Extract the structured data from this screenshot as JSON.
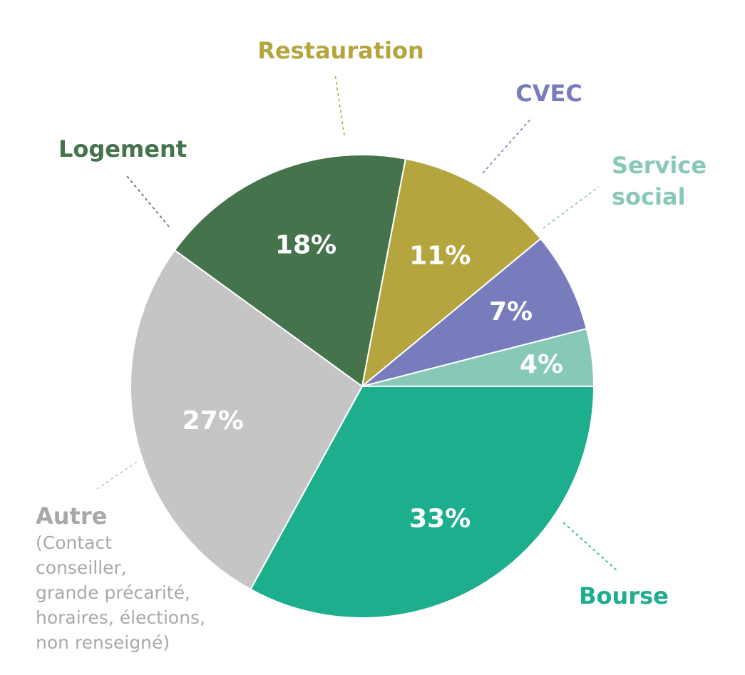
{
  "chart_data": {
    "type": "pie",
    "title": "",
    "unit": "%",
    "slices": [
      {
        "category": "Bourse",
        "value": 33,
        "label": "33%",
        "color": "#1dae8e"
      },
      {
        "category": "Autre",
        "value": 27,
        "label": "27%",
        "color": "#c5c5c5",
        "note_lines": [
          "(Contact",
          "conseiller,",
          "grande précarité,",
          "horaires, élections,",
          "non renseigné)"
        ]
      },
      {
        "category": "Logement",
        "value": 18,
        "label": "18%",
        "color": "#44734c"
      },
      {
        "category": "Restauration",
        "value": 11,
        "label": "11%",
        "color": "#b4a53e"
      },
      {
        "category": "CVEC",
        "value": 7,
        "label": "7%",
        "color": "#787cbc"
      },
      {
        "category": "Service social",
        "category_lines": [
          "Service",
          "social"
        ],
        "value": 4,
        "label": "4%",
        "color": "#88c8b8"
      }
    ]
  }
}
